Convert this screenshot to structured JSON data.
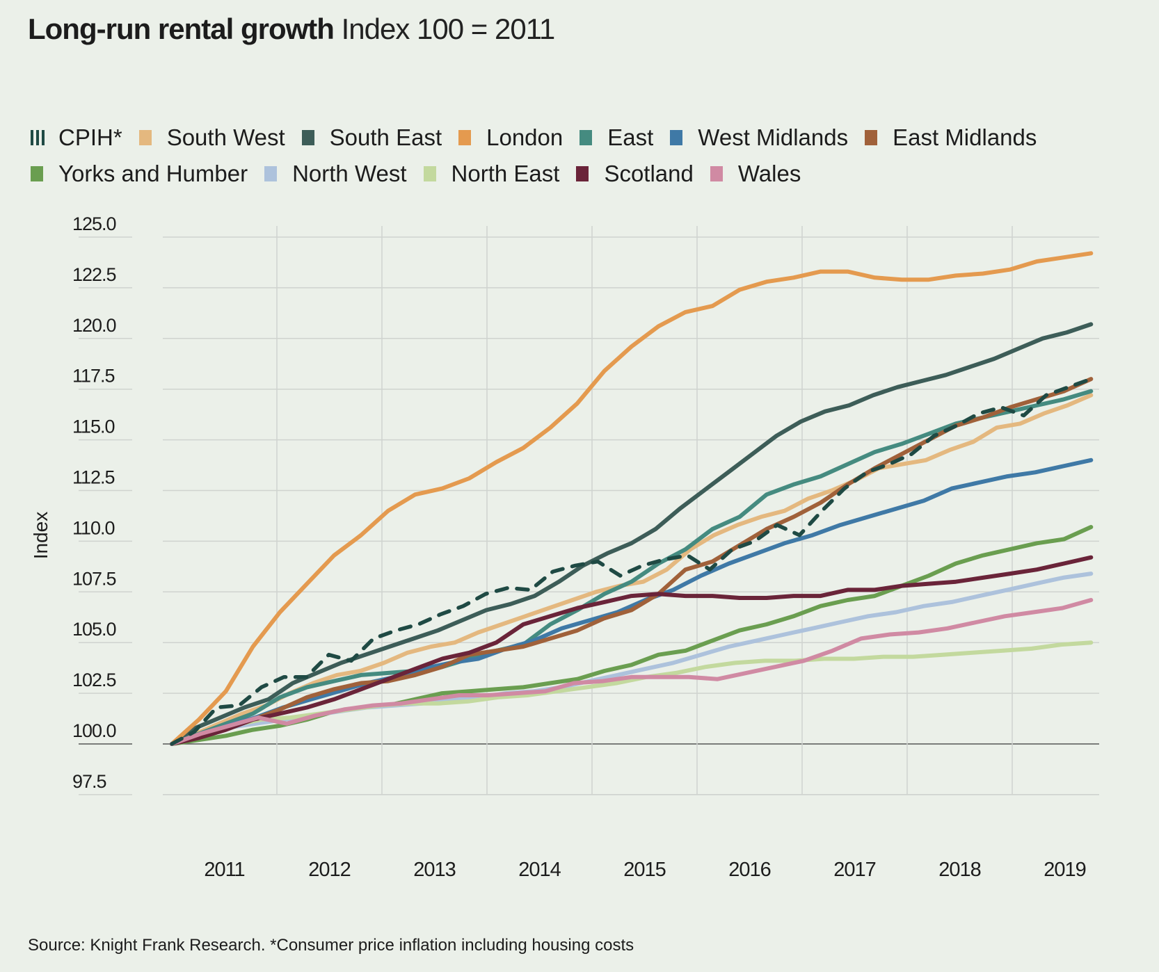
{
  "title": {
    "bold": "Long-run rental growth",
    "light": "Index 100 = 2011"
  },
  "source": "Source: Knight Frank Research. *Consumer price inflation including housing costs",
  "chart_data": {
    "type": "line",
    "title": "Long-run rental growth Index 100 = 2011",
    "xlabel": "",
    "ylabel": "Index",
    "ylim": [
      97.5,
      125.0
    ],
    "yticks": [
      "125.0",
      "122.5",
      "120.0",
      "117.5",
      "115.0",
      "112.5",
      "110.0",
      "107.5",
      "105.0",
      "102.5",
      "100.0",
      "97.5"
    ],
    "ytick_values": [
      125.0,
      122.5,
      120.0,
      117.5,
      115.0,
      112.5,
      110.0,
      107.5,
      105.0,
      102.5,
      100.0,
      97.5
    ],
    "xticks": [
      "2011",
      "2012",
      "2013",
      "2014",
      "2015",
      "2016",
      "2017",
      "2018",
      "2019"
    ],
    "x_frequency": "quarterly from 2011 Q1",
    "grid": true,
    "legend_position": "top",
    "series": [
      {
        "name": "CPIH*",
        "color": "#1f4a44",
        "dashed": true,
        "values": [
          100,
          100.6,
          101.8,
          101.9,
          102.8,
          103.3,
          103.3,
          104.4,
          104.1,
          105.2,
          105.6,
          105.9,
          106.4,
          106.8,
          107.4,
          107.7,
          107.6,
          108.5,
          108.8,
          109.0,
          108.3,
          108.8,
          109.1,
          109.3,
          108.6,
          109.6,
          110.0,
          110.8,
          110.3,
          111.5,
          112.6,
          113.4,
          113.8,
          114.3,
          115.2,
          115.7,
          116.3,
          116.6,
          116.2,
          117.2,
          117.6,
          118.0
        ]
      },
      {
        "name": "South West",
        "color": "#e4b87f",
        "values": [
          100,
          100.5,
          101.0,
          101.5,
          101.9,
          102.5,
          103.0,
          103.4,
          103.6,
          104.0,
          104.5,
          104.8,
          105.0,
          105.5,
          105.9,
          106.3,
          106.7,
          107.1,
          107.5,
          107.8,
          108.0,
          108.6,
          109.6,
          110.3,
          110.8,
          111.2,
          111.5,
          112.1,
          112.5,
          113.0,
          113.6,
          113.8,
          114.0,
          114.5,
          114.9,
          115.6,
          115.8,
          116.3,
          116.7,
          117.2
        ]
      },
      {
        "name": "South East",
        "color": "#3d5d58",
        "values": [
          100,
          100.8,
          101.3,
          101.8,
          102.2,
          103.0,
          103.5,
          104.0,
          104.4,
          104.8,
          105.2,
          105.6,
          106.1,
          106.6,
          106.9,
          107.3,
          108.0,
          108.8,
          109.4,
          109.9,
          110.6,
          111.6,
          112.5,
          113.4,
          114.3,
          115.2,
          115.9,
          116.4,
          116.7,
          117.2,
          117.6,
          117.9,
          118.2,
          118.6,
          119.0,
          119.5,
          120.0,
          120.3,
          120.7
        ]
      },
      {
        "name": "London",
        "color": "#e49a4f",
        "values": [
          100,
          101.2,
          102.6,
          104.8,
          106.5,
          107.9,
          109.3,
          110.3,
          111.5,
          112.3,
          112.6,
          113.1,
          113.9,
          114.6,
          115.6,
          116.8,
          118.4,
          119.6,
          120.6,
          121.3,
          121.6,
          122.4,
          122.8,
          123.0,
          123.3,
          123.3,
          123.0,
          122.9,
          122.9,
          123.1,
          123.2,
          123.4,
          123.8,
          124.0,
          124.2
        ]
      },
      {
        "name": "East",
        "color": "#458b80",
        "values": [
          100,
          100.5,
          101.0,
          101.5,
          102.3,
          102.8,
          103.1,
          103.4,
          103.5,
          103.6,
          103.8,
          104.2,
          104.6,
          104.9,
          105.9,
          106.6,
          107.4,
          108.0,
          108.9,
          109.6,
          110.6,
          111.2,
          112.3,
          112.8,
          113.2,
          113.8,
          114.4,
          114.8,
          115.3,
          115.8,
          116.1,
          116.4,
          116.7,
          117.0,
          117.4
        ]
      },
      {
        "name": "West Midlands",
        "color": "#3f79a6",
        "values": [
          100,
          100.4,
          100.9,
          101.3,
          101.8,
          102.2,
          102.6,
          103.0,
          103.3,
          103.7,
          104.0,
          104.2,
          104.7,
          105.1,
          105.7,
          106.1,
          106.5,
          107.1,
          107.6,
          108.3,
          108.9,
          109.4,
          109.9,
          110.3,
          110.8,
          111.2,
          111.6,
          112.0,
          112.6,
          112.9,
          113.2,
          113.4,
          113.7,
          114.0
        ]
      },
      {
        "name": "East Midlands",
        "color": "#a0613a",
        "values": [
          100,
          100.4,
          100.8,
          101.2,
          101.7,
          102.3,
          102.7,
          103.0,
          103.1,
          103.4,
          103.8,
          104.4,
          104.6,
          104.8,
          105.2,
          105.6,
          106.2,
          106.6,
          107.4,
          108.6,
          109.0,
          109.8,
          110.6,
          111.2,
          111.9,
          112.8,
          113.6,
          114.3,
          115.0,
          115.7,
          116.1,
          116.6,
          117.0,
          117.4,
          118.0
        ]
      },
      {
        "name": "Yorks and Humber",
        "color": "#6a9e50",
        "values": [
          100,
          100.2,
          100.4,
          100.7,
          100.9,
          101.2,
          101.6,
          101.8,
          101.9,
          102.2,
          102.5,
          102.6,
          102.7,
          102.8,
          103.0,
          103.2,
          103.6,
          103.9,
          104.4,
          104.6,
          105.1,
          105.6,
          105.9,
          106.3,
          106.8,
          107.1,
          107.3,
          107.8,
          108.3,
          108.9,
          109.3,
          109.6,
          109.9,
          110.1,
          110.7
        ]
      },
      {
        "name": "North West",
        "color": "#adc2dc",
        "values": [
          100,
          100.4,
          100.8,
          101.0,
          101.2,
          101.4,
          101.6,
          101.8,
          101.9,
          102.0,
          102.2,
          102.3,
          102.5,
          102.6,
          102.8,
          103.1,
          103.4,
          103.7,
          104.0,
          104.4,
          104.8,
          105.1,
          105.4,
          105.7,
          106.0,
          106.3,
          106.5,
          106.8,
          107.0,
          107.3,
          107.6,
          107.9,
          108.2,
          108.4
        ]
      },
      {
        "name": "North East",
        "color": "#c3d99e",
        "values": [
          100,
          100.5,
          100.9,
          101.2,
          101.3,
          101.5,
          101.7,
          101.9,
          102.0,
          102.0,
          102.1,
          102.3,
          102.4,
          102.6,
          102.8,
          103.0,
          103.3,
          103.5,
          103.8,
          104.0,
          104.1,
          104.1,
          104.2,
          104.2,
          104.3,
          104.3,
          104.4,
          104.5,
          104.6,
          104.7,
          104.9,
          105.0
        ]
      },
      {
        "name": "Scotland",
        "color": "#6a2439",
        "values": [
          100,
          100.3,
          100.7,
          101.2,
          101.5,
          101.8,
          102.2,
          102.7,
          103.2,
          103.7,
          104.2,
          104.5,
          105.0,
          105.9,
          106.3,
          106.7,
          107.0,
          107.3,
          107.4,
          107.3,
          107.3,
          107.2,
          107.2,
          107.3,
          107.3,
          107.6,
          107.6,
          107.8,
          107.9,
          108.0,
          108.2,
          108.4,
          108.6,
          108.9,
          109.2
        ]
      },
      {
        "name": "Wales",
        "color": "#d08aa3",
        "values": [
          100,
          100.5,
          100.9,
          101.3,
          101.0,
          101.4,
          101.7,
          101.9,
          102.0,
          102.2,
          102.4,
          102.4,
          102.5,
          102.6,
          103.0,
          103.1,
          103.3,
          103.3,
          103.3,
          103.2,
          103.5,
          103.8,
          104.1,
          104.6,
          105.2,
          105.4,
          105.5,
          105.7,
          106.0,
          106.3,
          106.5,
          106.7,
          107.1
        ]
      }
    ]
  }
}
